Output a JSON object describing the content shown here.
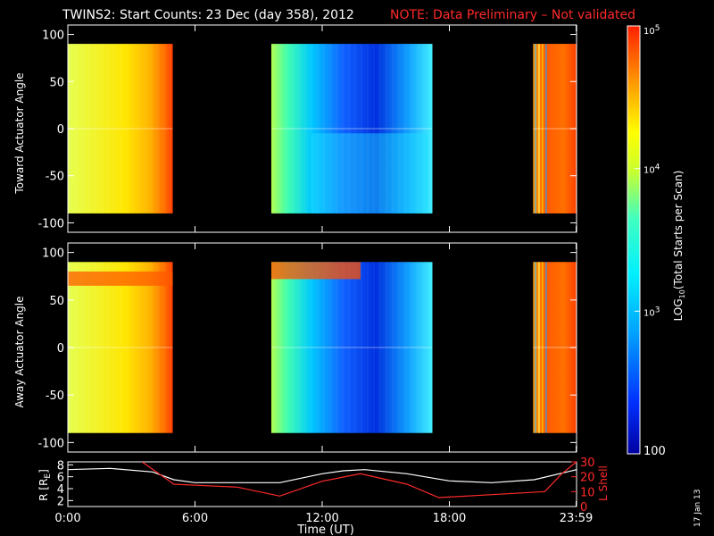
{
  "title": "TWINS2: Start Counts: 23 Dec (day 358), 2012",
  "note": "NOTE: Data Preliminary – Not validated",
  "date_stamp": "17 Jan 13",
  "colors": {
    "note": "#ff2a2a",
    "r_trace": "#ffffff",
    "l_trace": "#ff2a2a"
  },
  "chart_data": [
    {
      "type": "heatmap",
      "panel": "toward",
      "ylabel": "Toward Actuator Angle",
      "ylim": [
        -110,
        110
      ],
      "yticks": [
        -100,
        -50,
        0,
        50,
        100
      ],
      "xlim_hours": [
        0,
        24
      ],
      "data_angle_range": [
        -90,
        90
      ],
      "log_scale": true,
      "coverage_hours": [
        [
          0,
          4.95
        ],
        [
          9.6,
          17.2
        ],
        [
          21.95,
          24
        ]
      ]
    },
    {
      "type": "heatmap",
      "panel": "away",
      "ylabel": "Away Actuator Angle",
      "ylim": [
        -110,
        110
      ],
      "yticks": [
        -100,
        -50,
        0,
        50,
        100
      ],
      "xlim_hours": [
        0,
        24
      ],
      "data_angle_range": [
        -90,
        90
      ],
      "log_scale": true,
      "coverage_hours": [
        [
          0,
          4.95
        ],
        [
          9.6,
          17.2
        ],
        [
          21.95,
          24
        ]
      ]
    },
    {
      "type": "line",
      "panel": "orbit",
      "xlabel": "Time (UT)",
      "xticks": [
        "0:00",
        "6:00",
        "12:00",
        "18:00",
        "23:59"
      ],
      "xtick_hours": [
        0,
        6,
        12,
        18,
        23.98
      ],
      "ylabel_left": "R [R",
      "ylabel_left_sub": "E",
      "ylabel_left_close": "]",
      "ylabel_right": "L Shell",
      "ylim_left": [
        1,
        8.5
      ],
      "yticks_left": [
        2,
        4,
        6,
        8
      ],
      "ylim_right": [
        0,
        30
      ],
      "yticks_right": [
        10,
        20,
        30
      ],
      "series": [
        {
          "axis": "left",
          "x": [
            0,
            2,
            4,
            5,
            6,
            8,
            10,
            12,
            13,
            14,
            16,
            18,
            20,
            22,
            24
          ],
          "y": [
            7.2,
            7.4,
            6.8,
            5.5,
            5.0,
            5.0,
            5.0,
            6.5,
            7.0,
            7.2,
            6.5,
            5.3,
            5.0,
            5.5,
            7.2
          ]
        },
        {
          "axis": "right",
          "x": [
            3.5,
            5,
            8,
            10,
            12,
            13.8,
            16,
            17.5,
            20,
            22.5,
            23.3,
            24
          ],
          "y": [
            30,
            15,
            13,
            7,
            17,
            22,
            15,
            6,
            8,
            10,
            22,
            30
          ]
        }
      ]
    }
  ],
  "colorbar": {
    "label": "LOG",
    "label_sub": "10",
    "label_rest": "(Total Starts per Scan)",
    "ticks": [
      {
        "base": "10",
        "exp": "5",
        "value": 100000
      },
      {
        "base": "10",
        "exp": "4",
        "value": 10000
      },
      {
        "base": "10",
        "exp": "3",
        "value": 1000
      },
      {
        "base": "100",
        "exp": "",
        "value": 100
      }
    ]
  }
}
